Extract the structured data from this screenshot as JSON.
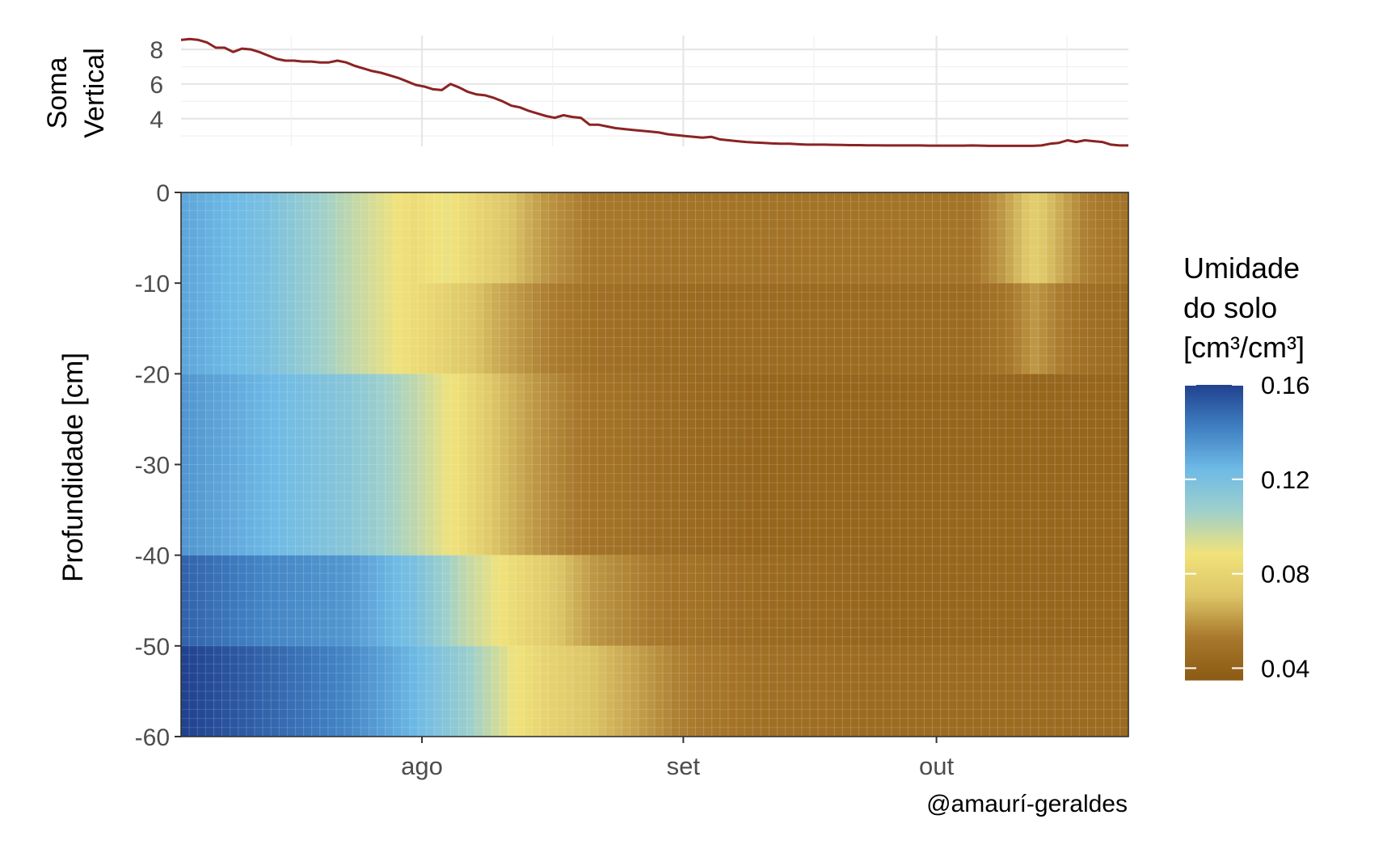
{
  "chart_data": [
    {
      "type": "line",
      "ylabel_lines": [
        "Soma",
        "Vertical"
      ],
      "y_ticks": [
        4,
        6,
        8
      ],
      "ylim": [
        2.4,
        8.8
      ],
      "grid": true,
      "line_color": "#8b2323",
      "x": [
        0,
        1,
        2,
        3,
        4,
        5,
        6,
        7,
        8,
        9,
        10,
        11,
        12,
        13,
        14,
        15,
        16,
        17,
        18,
        19,
        20,
        21,
        22,
        23,
        24,
        25,
        26,
        27,
        28,
        29,
        30,
        31,
        32,
        33,
        34,
        35,
        36,
        37,
        38,
        39,
        40,
        41,
        42,
        43,
        44,
        45,
        46,
        47,
        48,
        49,
        50,
        51,
        52,
        53,
        54,
        55,
        56,
        57,
        58,
        59,
        60,
        61,
        62,
        63,
        64,
        65,
        66,
        67,
        68,
        69,
        70,
        71,
        72,
        73,
        74,
        75,
        76,
        77,
        78,
        79,
        80,
        81,
        82,
        83,
        84,
        85,
        86,
        87,
        88,
        89,
        90,
        91,
        92,
        93,
        94,
        95,
        96,
        97,
        98,
        99,
        100,
        101,
        102,
        103,
        104,
        105,
        106,
        107,
        108,
        109
      ],
      "values": [
        8.55,
        8.6,
        8.55,
        8.4,
        8.1,
        8.1,
        7.85,
        8.05,
        8.0,
        7.85,
        7.65,
        7.45,
        7.35,
        7.35,
        7.3,
        7.3,
        7.25,
        7.25,
        7.35,
        7.25,
        7.05,
        6.9,
        6.75,
        6.65,
        6.5,
        6.35,
        6.15,
        5.95,
        5.85,
        5.7,
        5.65,
        6.0,
        5.8,
        5.55,
        5.4,
        5.35,
        5.2,
        5.0,
        4.75,
        4.65,
        4.45,
        4.3,
        4.15,
        4.05,
        4.2,
        4.1,
        4.05,
        3.65,
        3.65,
        3.55,
        3.45,
        3.4,
        3.35,
        3.3,
        3.25,
        3.2,
        3.1,
        3.05,
        3.0,
        2.95,
        2.9,
        2.95,
        2.8,
        2.75,
        2.7,
        2.65,
        2.62,
        2.6,
        2.57,
        2.55,
        2.55,
        2.52,
        2.5,
        2.5,
        2.5,
        2.49,
        2.48,
        2.47,
        2.47,
        2.46,
        2.46,
        2.45,
        2.45,
        2.45,
        2.45,
        2.45,
        2.44,
        2.44,
        2.44,
        2.44,
        2.44,
        2.45,
        2.44,
        2.43,
        2.43,
        2.43,
        2.43,
        2.43,
        2.43,
        2.45,
        2.55,
        2.6,
        2.75,
        2.65,
        2.75,
        2.7,
        2.65,
        2.5,
        2.45,
        2.45
      ]
    },
    {
      "type": "heatmap",
      "ylabel": "Profundidade [cm]",
      "y_ticks": [
        0,
        -10,
        -20,
        -30,
        -40,
        -50,
        -60
      ],
      "ylim": [
        -60,
        0
      ],
      "depth_layers": [
        {
          "top": 0,
          "bottom": -10
        },
        {
          "top": -10,
          "bottom": -20
        },
        {
          "top": -20,
          "bottom": -40
        },
        {
          "top": -40,
          "bottom": -50
        },
        {
          "top": -50,
          "bottom": -60
        }
      ],
      "x_tick_labels": [
        "ago",
        "set",
        "out"
      ],
      "x_tick_days": [
        29,
        61,
        92
      ],
      "n_days": 116,
      "legend_title_lines": [
        "Umidade",
        "do solo",
        "[cm³/cm³]"
      ],
      "legend_ticks": [
        "0.16",
        "0.12",
        "0.08",
        "0.04"
      ],
      "legend_tick_values": [
        0.16,
        0.12,
        0.08,
        0.04
      ],
      "value_range": [
        0.035,
        0.16
      ],
      "palette": [
        "#8b5a14",
        "#a8782c",
        "#ddc567",
        "#f0e27a",
        "#9fd0cb",
        "#6ebae6",
        "#3f7fc2",
        "#21428f"
      ],
      "moisture_profiles": {
        "layer_1": {
          "days": [
            0,
            10,
            20,
            28,
            32,
            38,
            44,
            50,
            60,
            70,
            85,
            96,
            100,
            104,
            110,
            115
          ],
          "values": [
            0.13,
            0.12,
            0.1,
            0.085,
            0.09,
            0.075,
            0.06,
            0.052,
            0.05,
            0.05,
            0.05,
            0.05,
            0.06,
            0.075,
            0.055,
            0.05
          ]
        },
        "layer_2": {
          "days": [
            0,
            10,
            20,
            28,
            32,
            38,
            44,
            50,
            60,
            70,
            85,
            96,
            100,
            104,
            110,
            115
          ],
          "values": [
            0.13,
            0.12,
            0.1,
            0.085,
            0.078,
            0.065,
            0.055,
            0.048,
            0.045,
            0.045,
            0.045,
            0.045,
            0.05,
            0.06,
            0.048,
            0.045
          ]
        },
        "layer_3": {
          "days": [
            0,
            10,
            20,
            28,
            34,
            38,
            44,
            50,
            60,
            70,
            85,
            96,
            110,
            115
          ],
          "values": [
            0.135,
            0.125,
            0.115,
            0.1,
            0.085,
            0.07,
            0.058,
            0.05,
            0.045,
            0.042,
            0.042,
            0.042,
            0.042,
            0.042
          ]
        },
        "layer_4": {
          "days": [
            0,
            10,
            20,
            28,
            34,
            40,
            44,
            50,
            60,
            70,
            85,
            96,
            110,
            115
          ],
          "values": [
            0.15,
            0.14,
            0.135,
            0.12,
            0.1,
            0.085,
            0.075,
            0.06,
            0.05,
            0.045,
            0.042,
            0.042,
            0.042,
            0.042
          ]
        },
        "layer_5": {
          "days": [
            0,
            10,
            20,
            28,
            34,
            40,
            44,
            50,
            60,
            70,
            85,
            96,
            110,
            115
          ],
          "values": [
            0.16,
            0.15,
            0.14,
            0.125,
            0.11,
            0.09,
            0.08,
            0.07,
            0.055,
            0.048,
            0.045,
            0.045,
            0.045,
            0.045
          ]
        }
      }
    }
  ],
  "caption": "@amaurí-geraldes"
}
